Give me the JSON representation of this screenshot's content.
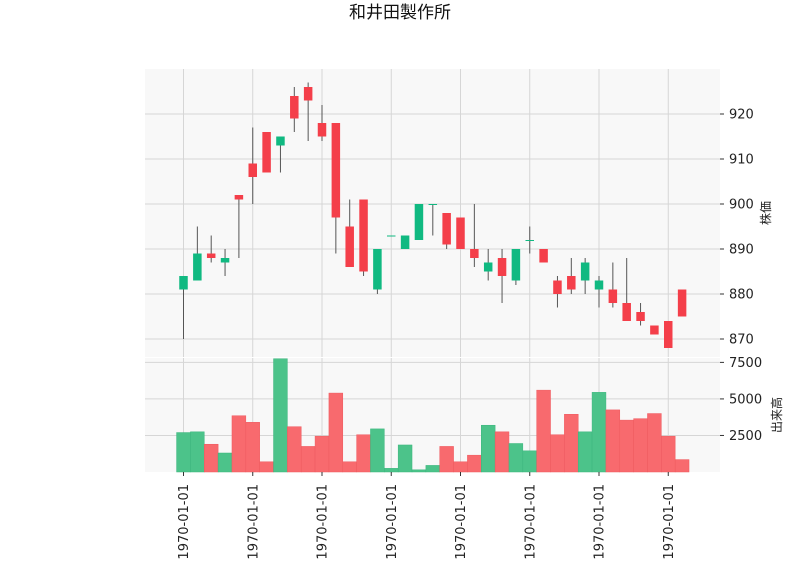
{
  "chart_data": {
    "type": "candlestick",
    "title": "和井田製作所",
    "price_axis": {
      "label": "株価",
      "ylim": [
        866,
        930
      ],
      "ticks": [
        870,
        880,
        890,
        900,
        910,
        920
      ]
    },
    "volume_axis": {
      "label": "出来高",
      "ylim": [
        0,
        7800
      ],
      "ticks": [
        2500,
        5000,
        7500
      ],
      "tick_labels": [
        "2500",
        "5000",
        "7500"
      ]
    },
    "x_tick_labels": [
      "1970-01-01",
      "1970-01-01",
      "1970-01-01",
      "1970-01-01",
      "1970-01-01",
      "1970-01-01",
      "1970-01-01",
      "1970-01-01"
    ],
    "x_tick_indices": [
      0,
      5,
      10,
      15,
      20,
      25,
      30,
      35
    ],
    "grid": true,
    "up_color": "#10b981",
    "down_color": "#f43f4a",
    "volume_up_color": "#4cc38a",
    "volume_down_color": "#f86a6e",
    "candles": [
      {
        "o": 881,
        "h": 884,
        "l": 870,
        "c": 884,
        "v": 2700
      },
      {
        "o": 883,
        "h": 895,
        "l": 883,
        "c": 889,
        "v": 2750
      },
      {
        "o": 889,
        "h": 893,
        "l": 887,
        "c": 888,
        "v": 1900
      },
      {
        "o": 887,
        "h": 890,
        "l": 884,
        "c": 888,
        "v": 1300
      },
      {
        "o": 902,
        "h": 902,
        "l": 888,
        "c": 901,
        "v": 3850
      },
      {
        "o": 909,
        "h": 917,
        "l": 900,
        "c": 906,
        "v": 3400
      },
      {
        "o": 916,
        "h": 916,
        "l": 907,
        "c": 907,
        "v": 700
      },
      {
        "o": 913,
        "h": 915,
        "l": 907,
        "c": 915,
        "v": 7750
      },
      {
        "o": 924,
        "h": 926,
        "l": 916,
        "c": 919,
        "v": 3100
      },
      {
        "o": 926,
        "h": 927,
        "l": 914,
        "c": 923,
        "v": 1750
      },
      {
        "o": 918,
        "h": 922,
        "l": 914,
        "c": 915,
        "v": 2450
      },
      {
        "o": 918,
        "h": 918,
        "l": 889,
        "c": 897,
        "v": 5400
      },
      {
        "o": 895,
        "h": 901,
        "l": 886,
        "c": 886,
        "v": 700
      },
      {
        "o": 901,
        "h": 901,
        "l": 884,
        "c": 885,
        "v": 2550
      },
      {
        "o": 881,
        "h": 890,
        "l": 880,
        "c": 890,
        "v": 2950
      },
      {
        "o": 893,
        "h": 893,
        "l": 893,
        "c": 893,
        "v": 250
      },
      {
        "o": 890,
        "h": 893,
        "l": 890,
        "c": 893,
        "v": 1850
      },
      {
        "o": 892,
        "h": 900,
        "l": 892,
        "c": 900,
        "v": 150
      },
      {
        "o": 900,
        "h": 900,
        "l": 893,
        "c": 900,
        "v": 450
      },
      {
        "o": 898,
        "h": 898,
        "l": 890,
        "c": 891,
        "v": 1750
      },
      {
        "o": 897,
        "h": 897,
        "l": 890,
        "c": 890,
        "v": 700
      },
      {
        "o": 890,
        "h": 900,
        "l": 886,
        "c": 888,
        "v": 1150
      },
      {
        "o": 885,
        "h": 890,
        "l": 883,
        "c": 887,
        "v": 3200
      },
      {
        "o": 888,
        "h": 890,
        "l": 878,
        "c": 884,
        "v": 2750
      },
      {
        "o": 883,
        "h": 890,
        "l": 882,
        "c": 890,
        "v": 1950
      },
      {
        "o": 892,
        "h": 895,
        "l": 889,
        "c": 892,
        "v": 1450
      },
      {
        "o": 890,
        "h": 890,
        "l": 887,
        "c": 887,
        "v": 5600
      },
      {
        "o": 883,
        "h": 884,
        "l": 877,
        "c": 880,
        "v": 2550
      },
      {
        "o": 884,
        "h": 888,
        "l": 880,
        "c": 881,
        "v": 3950
      },
      {
        "o": 883,
        "h": 888,
        "l": 880,
        "c": 887,
        "v": 2750
      },
      {
        "o": 881,
        "h": 884,
        "l": 877,
        "c": 883,
        "v": 5450
      },
      {
        "o": 881,
        "h": 887,
        "l": 877,
        "c": 878,
        "v": 4250
      },
      {
        "o": 878,
        "h": 888,
        "l": 874,
        "c": 874,
        "v": 3550
      },
      {
        "o": 876,
        "h": 878,
        "l": 873,
        "c": 874,
        "v": 3650
      },
      {
        "o": 873,
        "h": 873,
        "l": 871,
        "c": 871,
        "v": 4000
      },
      {
        "o": 874,
        "h": 874,
        "l": 868,
        "c": 868,
        "v": 2450
      },
      {
        "o": 881,
        "h": 881,
        "l": 875,
        "c": 875,
        "v": 850
      }
    ]
  }
}
